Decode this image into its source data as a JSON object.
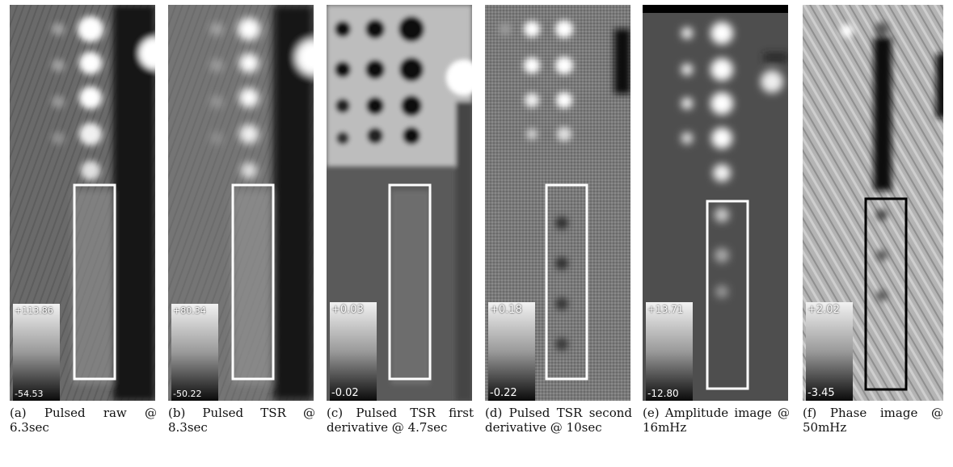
{
  "panels": [
    {
      "caption": "(a) Pulsed raw @ 6.3sec",
      "scale_max": "+113.86",
      "scale_min": "-54.53",
      "roi_color": "#ffffff",
      "background": "#6f6f6f"
    },
    {
      "caption": "(b) Pulsed TSR @ 8.3sec",
      "scale_max": "+80.34",
      "scale_min": "-50.22",
      "roi_color": "#ffffff",
      "background": "#767676"
    },
    {
      "caption": "(c) Pulsed TSR first derivative @ 4.7sec",
      "scale_max": "+0.03",
      "scale_min": "-0.02",
      "roi_color": "#ffffff",
      "background": "#5c5c5c"
    },
    {
      "caption": "(d) Pulsed TSR second derivative @ 10sec",
      "scale_max": "+0.18",
      "scale_min": "-0.22",
      "roi_color": "#ffffff",
      "background": "#7b7b7b"
    },
    {
      "caption": "(e) Amplitude image @ 16mHz",
      "scale_max": "+13.71",
      "scale_min": "-12.80",
      "roi_color": "#ffffff",
      "background": "#5a5a5a"
    },
    {
      "caption": "(f) Phase image @ 50mHz",
      "scale_max": "+2.02",
      "scale_min": "-3.45",
      "roi_color": "#000000",
      "background": "#a8a8a8"
    }
  ]
}
